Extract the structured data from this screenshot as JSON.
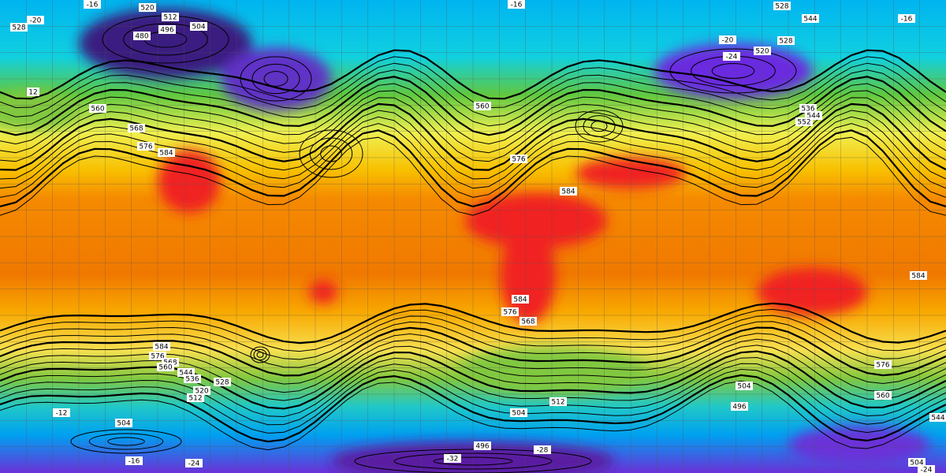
{
  "labels": [
    "520",
    "512",
    "504",
    "480",
    "496",
    "-16",
    "-20",
    "528",
    "-16",
    "528",
    "544",
    "-16",
    "-20",
    "528",
    "520",
    "-24",
    "536",
    "544",
    "552",
    "560",
    "568",
    "576",
    "584",
    "560",
    "12",
    "584",
    "576",
    "584",
    "584",
    "576",
    "568",
    "584",
    "576",
    "568",
    "560",
    "544",
    "536",
    "520",
    "512",
    "528",
    "504",
    "-12",
    "-16",
    "-24",
    "496",
    "-32",
    "-28",
    "504",
    "512",
    "504",
    "496",
    "576",
    "560",
    "504",
    "-24",
    "544"
  ]
}
